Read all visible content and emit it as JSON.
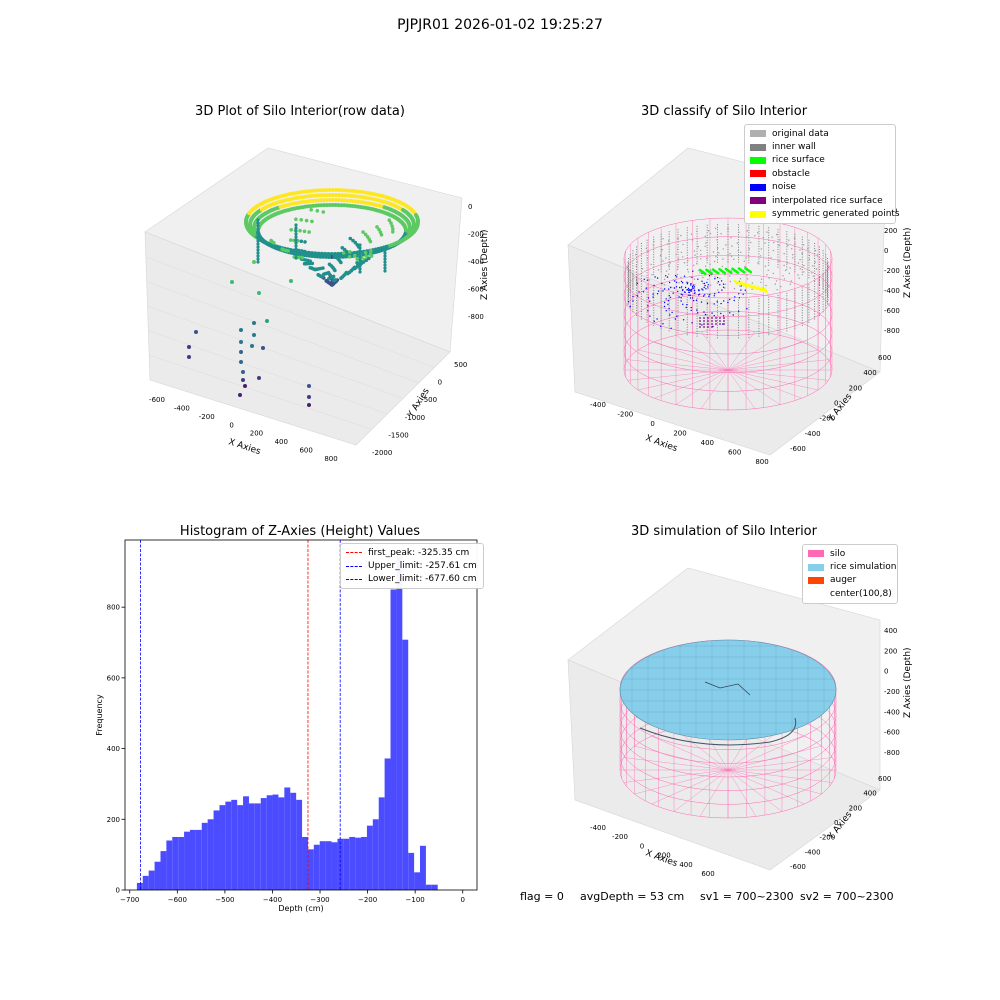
{
  "suptitle": "PJPJR01 2026-01-02 19:25:27",
  "colors": {
    "hist_bar": "#4b4bff",
    "first_peak_line": "#ff0000",
    "limit_line": "#0000ff",
    "silo_mesh": "#ff69b4",
    "rice_fill": "#87ceeb"
  },
  "chart_data": [
    {
      "id": "raw3d",
      "type": "scatter",
      "title": "3D Plot of Silo Interior(row data)",
      "xlabel": "X Axies",
      "ylabel": "Y Axies",
      "zlabel": "Z Axies (Depth)",
      "xticks": [
        "-600",
        "-400",
        "-200",
        "0",
        "200",
        "400",
        "600",
        "800"
      ],
      "yticks": [
        "-2000",
        "-1500",
        "-1000",
        "-500",
        "0",
        "500"
      ],
      "zticks": [
        "0",
        "-200",
        "-400",
        "-600",
        "-800"
      ],
      "xlim": [
        -650,
        850
      ],
      "ylim": [
        -2100,
        700
      ],
      "zlim": [
        -950,
        50
      ],
      "colormap": "viridis"
    },
    {
      "id": "classify3d",
      "type": "scatter",
      "title": "3D classify of Silo Interior",
      "xlabel": "X Axies",
      "ylabel": "Y Axies",
      "zlabel": "Z Axies (Depth)",
      "xticks": [
        "-400",
        "-200",
        "0",
        "200",
        "400",
        "600",
        "800"
      ],
      "yticks": [
        "-600",
        "-400",
        "-200",
        "0",
        "200",
        "400",
        "600"
      ],
      "zticks": [
        "400",
        "200",
        "0",
        "-200",
        "-400",
        "-600",
        "-800"
      ],
      "legend": [
        {
          "label": "original data",
          "color": "#b0b0b0"
        },
        {
          "label": "inner wall",
          "color": "#808080"
        },
        {
          "label": "rice surface",
          "color": "#00ff00"
        },
        {
          "label": "obstacle",
          "color": "#ff0000"
        },
        {
          "label": "noise",
          "color": "#0000ff"
        },
        {
          "label": "interpolated rice surface",
          "color": "#800080"
        },
        {
          "label": "symmetric generated points",
          "color": "#ffff00"
        }
      ]
    },
    {
      "id": "hist",
      "type": "bar",
      "title": "Histogram of Z-Axies (Height) Values",
      "xlabel": "Depth (cm)",
      "ylabel": "Frequency",
      "xlim": [
        -710,
        30
      ],
      "ylim": [
        0,
        990
      ],
      "xticks": [
        -700,
        -600,
        -500,
        -400,
        -300,
        -200,
        -100,
        0
      ],
      "yticks": [
        0,
        200,
        400,
        600,
        800
      ],
      "bin_width": 12.4,
      "bins_start": -685,
      "values": [
        20,
        40,
        55,
        80,
        110,
        140,
        150,
        150,
        165,
        170,
        170,
        190,
        200,
        225,
        240,
        250,
        255,
        240,
        265,
        245,
        245,
        260,
        268,
        270,
        262,
        290,
        275,
        255,
        150,
        115,
        128,
        138,
        138,
        135,
        145,
        145,
        150,
        148,
        150,
        182,
        200,
        262,
        372,
        850,
        950,
        708,
        105,
        50,
        125,
        15,
        15
      ],
      "vlines": [
        {
          "label": "first_peak: -325.35 cm",
          "value": -325.35,
          "color": "#ff0000"
        },
        {
          "label": "Upper_limit: -257.61 cm",
          "value": -257.61,
          "color": "#0000ff"
        },
        {
          "label": "Lower_limit: -677.60 cm",
          "value": -677.6,
          "color": "#0000ff"
        }
      ]
    },
    {
      "id": "sim3d",
      "type": "surface",
      "title": "3D simulation of Silo Interior",
      "xlabel": "X Axies",
      "ylabel": "Y Axies",
      "zlabel": "Z Axies (Depth)",
      "xticks": [
        "-400",
        "-200",
        "0",
        "200",
        "400",
        "600"
      ],
      "yticks": [
        "-600",
        "-400",
        "-200",
        "0",
        "200",
        "400",
        "600"
      ],
      "zticks": [
        "400",
        "200",
        "0",
        "-200",
        "-400",
        "-600",
        "-800"
      ],
      "legend": [
        {
          "label": "silo",
          "color": "#ff69b4"
        },
        {
          "label": "rice simulation",
          "color": "#87ceeb"
        },
        {
          "label": "auger",
          "color": "#ff4500"
        },
        {
          "label": "center(100,8)",
          "color": ""
        }
      ]
    }
  ],
  "footer": {
    "flag": "flag = 0",
    "avg_depth": "avgDepth = 53 cm",
    "sv1": "sv1 = 700~2300",
    "sv2": "sv2 = 700~2300"
  }
}
